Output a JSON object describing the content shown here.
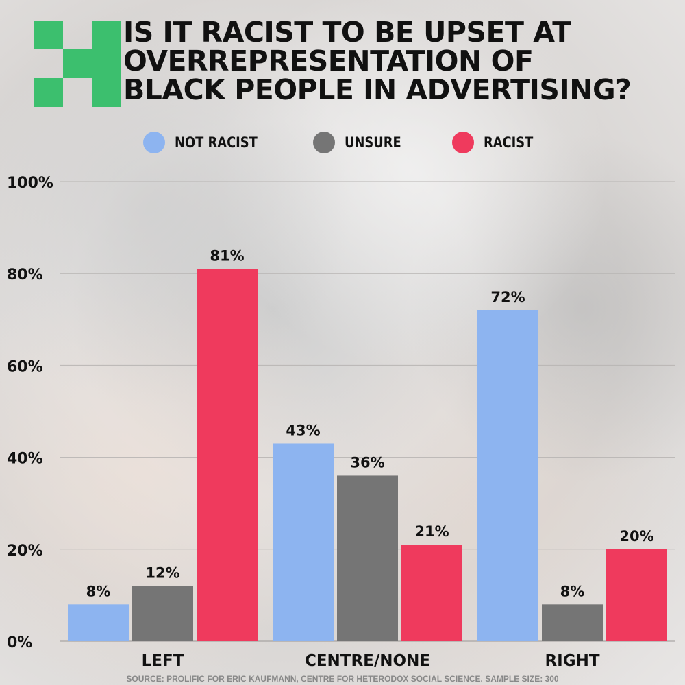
{
  "title": "IS IT RACIST TO BE UPSET AT\nOVERREPRESENTATION OF\nBLACK PEOPLE IN ADVERTISING?",
  "logo_color": "#3cbf6e",
  "source": "SOURCE: PROLIFIC FOR ERIC KAUFMANN, CENTRE FOR HETERODOX SOCIAL SCIENCE. SAMPLE SIZE: 300",
  "chart_data": {
    "type": "bar",
    "title": "IS IT RACIST TO BE UPSET AT OVERREPRESENTATION OF BLACK PEOPLE IN ADVERTISING?",
    "categories": [
      "LEFT",
      "CENTRE/NONE",
      "RIGHT"
    ],
    "series": [
      {
        "name": "NOT RACIST",
        "color": "#8db4f0",
        "values": [
          8,
          43,
          72
        ]
      },
      {
        "name": "UNSURE",
        "color": "#757575",
        "values": [
          12,
          36,
          8
        ]
      },
      {
        "name": "RACIST",
        "color": "#ef3a5d",
        "values": [
          81,
          21,
          20
        ]
      }
    ],
    "value_labels": [
      [
        "8%",
        "43%",
        "72%"
      ],
      [
        "12%",
        "36%",
        "8%"
      ],
      [
        "81%",
        "21%",
        "20%"
      ]
    ],
    "ylim": [
      0,
      100
    ],
    "yticks": [
      0,
      20,
      40,
      60,
      80,
      100
    ],
    "ytick_labels": [
      "0%",
      "20%",
      "40%",
      "60%",
      "80%",
      "100%"
    ],
    "xlabel": "",
    "ylabel": "",
    "grid": true,
    "legend_position": "top-center"
  }
}
